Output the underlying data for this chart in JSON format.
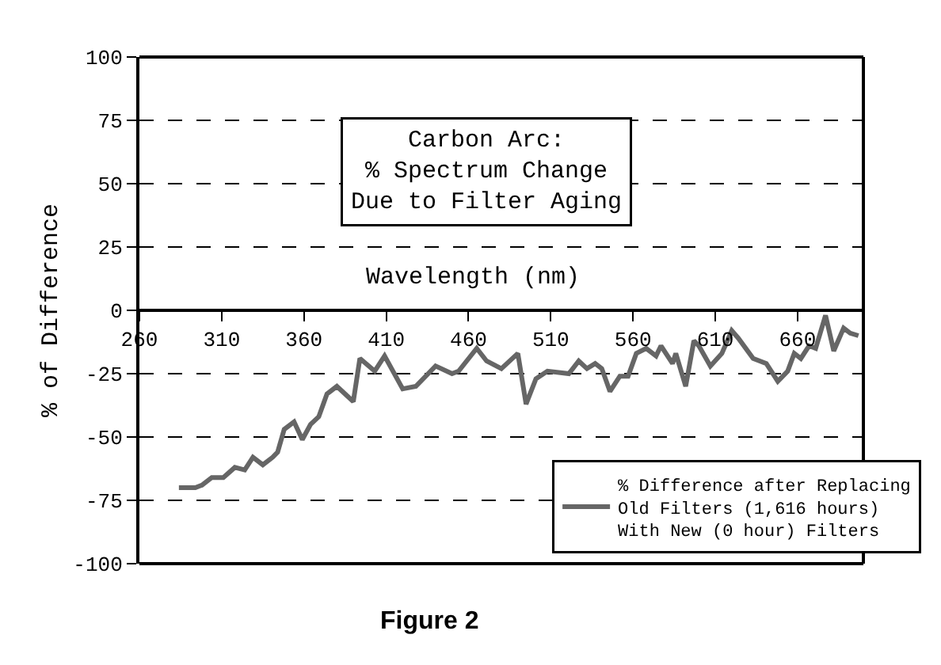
{
  "chart_data": {
    "type": "line",
    "title": "Carbon Arc:\n% Spectrum Change\nDue to Filter Aging",
    "xlabel": "Wavelength (nm)",
    "ylabel": "% of Difference",
    "annotations": [
      "Figure 2"
    ],
    "xlim": [
      260,
      700
    ],
    "xticks": [
      260,
      310,
      360,
      410,
      460,
      510,
      560,
      610,
      660
    ],
    "ylim": [
      -100,
      100
    ],
    "yticks": [
      -100,
      -75,
      -50,
      -25,
      0,
      25,
      50,
      75,
      100
    ],
    "grid": "y",
    "legend": "bottom right",
    "line_style": "solid",
    "series": [
      {
        "name": "% Difference after Replacing\nOld Filters (1,616 hours)\nWith New (0 hour) Filters",
        "color": "#666666",
        "x": [
          284,
          294,
          298,
          304,
          311,
          318,
          324,
          329,
          335,
          341,
          344,
          348,
          354,
          359,
          364,
          369,
          374,
          380,
          390,
          394,
          403,
          409,
          420,
          428,
          440,
          450,
          454,
          465,
          471,
          480,
          490,
          495,
          501,
          508,
          521,
          527,
          532,
          537,
          541,
          546,
          552,
          557,
          562,
          568,
          574,
          577,
          584,
          586,
          592,
          597,
          600,
          607,
          614,
          620,
          624,
          633,
          641,
          648,
          654,
          658,
          662,
          667,
          671,
          677,
          682,
          688,
          692,
          697
        ],
        "values": [
          -70,
          -70,
          -69,
          -66,
          -66,
          -62,
          -63,
          -58,
          -61,
          -58,
          -56,
          -47,
          -44,
          -51,
          -45,
          -42,
          -33,
          -30,
          -36,
          -19,
          -24,
          -18,
          -31,
          -30,
          -22,
          -25,
          -24,
          -15,
          -20,
          -23,
          -17,
          -37,
          -27,
          -24,
          -25,
          -20,
          -23,
          -21,
          -23,
          -32,
          -26,
          -26,
          -17,
          -15,
          -18,
          -14,
          -21,
          -17,
          -30,
          -12,
          -14,
          -22,
          -17,
          -8,
          -11,
          -19,
          -21,
          -28,
          -24,
          -17,
          -19,
          -14,
          -15,
          -2,
          -16,
          -7,
          -9,
          -10
        ]
      }
    ]
  }
}
